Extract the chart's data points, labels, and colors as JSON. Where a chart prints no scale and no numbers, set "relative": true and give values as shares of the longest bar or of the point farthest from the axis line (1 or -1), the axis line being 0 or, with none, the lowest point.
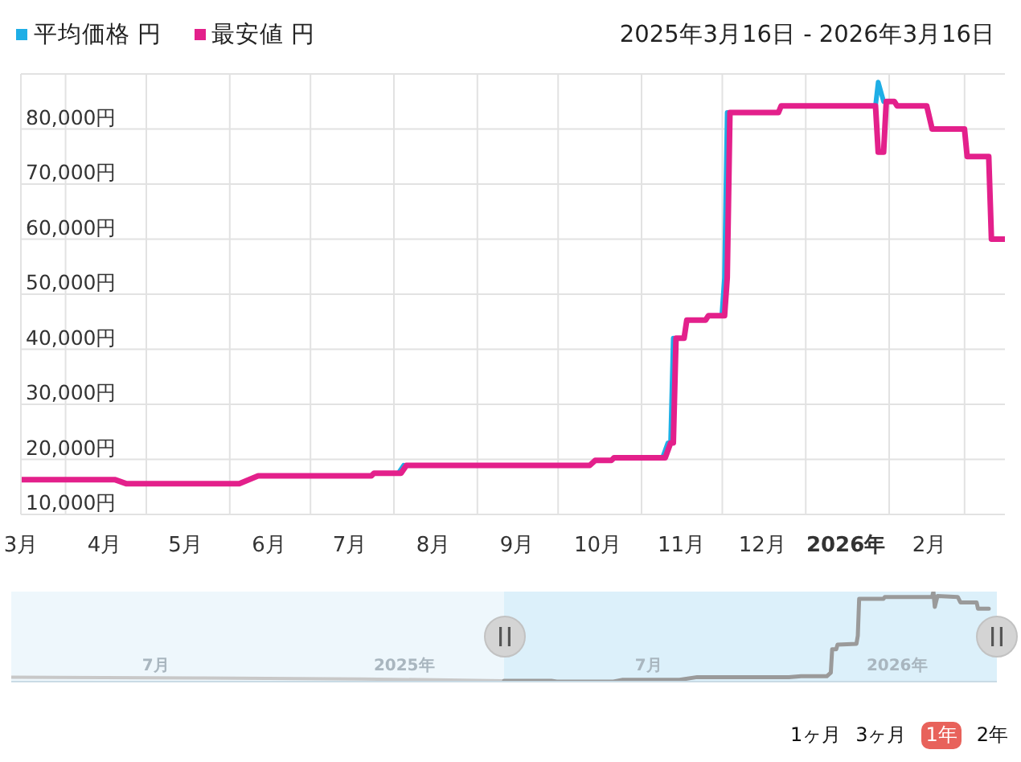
{
  "chart_data": [
    {
      "type": "line",
      "subtitle": "2025年3月16日 - 2026年3月16日",
      "legend": "top left",
      "grid": true,
      "xlim": [
        "2025-03-16",
        "2026-03-16"
      ],
      "xticks": [
        {
          "value": "2025-03-16",
          "label": "3月"
        },
        {
          "value": "2025-04-01",
          "label": null
        },
        {
          "value": "2025-04-16",
          "label": "4月"
        },
        {
          "value": "2025-05-01",
          "label": null
        },
        {
          "value": "2025-05-16",
          "label": "5月"
        },
        {
          "value": "2025-06-01",
          "label": null
        },
        {
          "value": "2025-06-16",
          "label": "6月"
        },
        {
          "value": "2025-07-01",
          "label": null
        },
        {
          "value": "2025-07-16",
          "label": "7月"
        },
        {
          "value": "2025-08-01",
          "label": null
        },
        {
          "value": "2025-08-16",
          "label": "8月"
        },
        {
          "value": "2025-09-01",
          "label": null
        },
        {
          "value": "2025-09-16",
          "label": "9月"
        },
        {
          "value": "2025-10-01",
          "label": null
        },
        {
          "value": "2025-10-16",
          "label": "10月"
        },
        {
          "value": "2025-11-01",
          "label": null
        },
        {
          "value": "2025-11-16",
          "label": "11月"
        },
        {
          "value": "2025-12-01",
          "label": null
        },
        {
          "value": "2025-12-16",
          "label": "12月"
        },
        {
          "value": "2026-01-01",
          "label": null
        },
        {
          "value": "2026-01-16",
          "label": "2026年"
        },
        {
          "value": "2026-02-01",
          "label": null
        },
        {
          "value": "2026-02-16",
          "label": "2月"
        },
        {
          "value": "2026-03-01",
          "label": null
        }
      ],
      "ylim": [
        10000,
        90000
      ],
      "yticks": [
        {
          "value": 10000,
          "label": "10,000円"
        },
        {
          "value": 20000,
          "label": "20,000円"
        },
        {
          "value": 30000,
          "label": "30,000円"
        },
        {
          "value": 40000,
          "label": "40,000円"
        },
        {
          "value": 50000,
          "label": "50,000円"
        },
        {
          "value": 60000,
          "label": "60,000円"
        },
        {
          "value": 70000,
          "label": "70,000円"
        },
        {
          "value": 80000,
          "label": "80,000円"
        },
        {
          "value": 90000,
          "label": null
        }
      ],
      "series": [
        {
          "name": "平均価格 円",
          "color": "#1eaee6",
          "x": [
            "2025-08-03",
            "2025-08-05",
            "2025-10-01",
            "2025-11-09",
            "2025-11-11",
            "2025-11-12",
            "2025-11-13",
            "2025-11-20",
            "2025-12-01",
            "2025-12-02",
            "2025-12-03",
            "2026-01-01",
            "2026-01-27",
            "2026-01-28",
            "2026-01-30"
          ],
          "values": [
            17500,
            18900,
            null,
            20300,
            23000,
            23000,
            42000,
            null,
            46100,
            53000,
            83000,
            null,
            84200,
            88500,
            85000
          ]
        },
        {
          "name": "最安値 円",
          "color": "#e3208b",
          "x": [
            "2025-03-16",
            "2025-04-20",
            "2025-04-24",
            "2025-06-05",
            "2025-06-12",
            "2025-07-24",
            "2025-07-25",
            "2025-08-04",
            "2025-08-06",
            "2025-10-13",
            "2025-10-15",
            "2025-10-21",
            "2025-10-22",
            "2025-11-10",
            "2025-11-12",
            "2025-11-13",
            "2025-11-14",
            "2025-11-17",
            "2025-11-18",
            "2025-11-25",
            "2025-11-26",
            "2025-12-02",
            "2025-12-03",
            "2025-12-04",
            "2025-12-22",
            "2025-12-23",
            "2026-01-27",
            "2026-01-28",
            "2026-01-30",
            "2026-01-31",
            "2026-02-03",
            "2026-02-04",
            "2026-02-15",
            "2026-02-17",
            "2026-03-01",
            "2026-03-02",
            "2026-03-10",
            "2026-03-11",
            "2026-03-16"
          ],
          "values": [
            16300,
            16300,
            15600,
            15600,
            17000,
            17000,
            17500,
            17500,
            18900,
            18900,
            19800,
            19800,
            20300,
            20300,
            23000,
            23000,
            42000,
            42000,
            45300,
            45300,
            46100,
            46100,
            53000,
            83000,
            83000,
            84200,
            84200,
            75800,
            75800,
            85000,
            85000,
            84200,
            84200,
            80000,
            80000,
            75000,
            75000,
            60000,
            60000
          ]
        }
      ]
    },
    {
      "type": "line",
      "relative": true,
      "grid": "x",
      "xlim": [
        "2024-03-16",
        "2026-03-16"
      ],
      "xticks": [
        {
          "value": "2024-07-01",
          "label": "7月"
        },
        {
          "value": "2025-01-01",
          "label": "2025年"
        },
        {
          "value": "2025-07-01",
          "label": "7月"
        },
        {
          "value": "2026-01-01",
          "label": "2026年"
        }
      ],
      "bands": [
        {
          "axis": "x",
          "from": "2024-03-16",
          "to": "2025-03-16",
          "color": "#eef7fc"
        },
        {
          "axis": "x",
          "from": "2025-03-16",
          "to": "2026-03-16",
          "color": "#dcf0fa"
        }
      ],
      "annotations": [
        "1ヶ月",
        "3ヶ月",
        "1年",
        "2年"
      ],
      "series": [
        {
          "color": "#c8c8c8",
          "x": [
            "2024-03-16",
            "2024-08-01",
            "2024-12-01",
            "2025-03-16"
          ],
          "values": [
            0.05,
            0.04,
            0.03,
            0.01
          ]
        },
        {
          "color": "#9a9a9a",
          "x": [
            "2025-03-16",
            "2025-04-20",
            "2025-04-24",
            "2025-06-05",
            "2025-06-12",
            "2025-07-24",
            "2025-08-06",
            "2025-10-13",
            "2025-10-22",
            "2025-11-10",
            "2025-11-13",
            "2025-11-14",
            "2025-11-17",
            "2025-11-18",
            "2025-12-02",
            "2025-12-03",
            "2025-12-04",
            "2025-12-22",
            "2025-12-23",
            "2026-01-27",
            "2026-01-28",
            "2026-01-29",
            "2026-01-31",
            "2026-02-15",
            "2026-02-17",
            "2026-03-01",
            "2026-03-02",
            "2026-03-10"
          ],
          "values": [
            0.01,
            0.01,
            0,
            0,
            0.02,
            0.02,
            0.05,
            0.05,
            0.06,
            0.06,
            0.1,
            0.36,
            0.36,
            0.41,
            0.42,
            0.51,
            0.92,
            0.92,
            0.94,
            0.94,
            1,
            0.83,
            0.95,
            0.94,
            0.88,
            0.88,
            0.81,
            0.81
          ]
        }
      ]
    }
  ]
}
